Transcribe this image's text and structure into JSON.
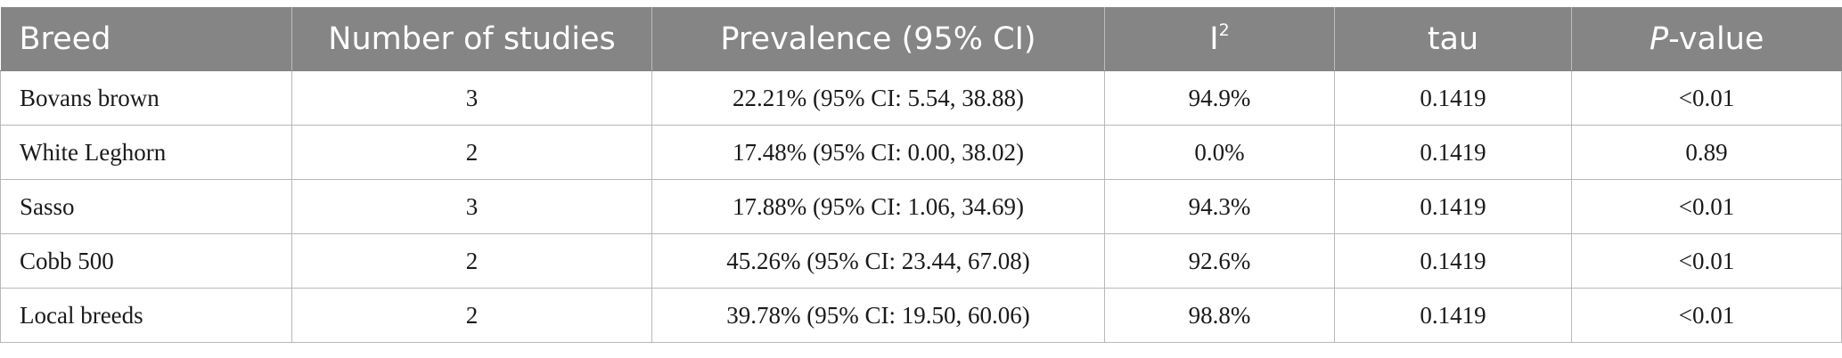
{
  "table": {
    "headers": {
      "breed": "Breed",
      "studies": "Number of studies",
      "prevalence": "Prevalence (95% CI)",
      "i2_base": "I",
      "i2_sup": "2",
      "tau": "tau",
      "p_italic": "P",
      "p_rest": "-value"
    },
    "rows": [
      {
        "breed": "Bovans brown",
        "studies": "3",
        "prevalence": "22.21% (95% CI: 5.54, 38.88)",
        "i2": "94.9%",
        "tau": "0.1419",
        "p": "<0.01"
      },
      {
        "breed": "White Leghorn",
        "studies": "2",
        "prevalence": "17.48% (95% CI: 0.00, 38.02)",
        "i2": "0.0%",
        "tau": "0.1419",
        "p": "0.89"
      },
      {
        "breed": "Sasso",
        "studies": "3",
        "prevalence": "17.88% (95% CI: 1.06, 34.69)",
        "i2": "94.3%",
        "tau": "0.1419",
        "p": "<0.01"
      },
      {
        "breed": "Cobb 500",
        "studies": "2",
        "prevalence": "45.26% (95% CI: 23.44, 67.08)",
        "i2": "92.6%",
        "tau": "0.1419",
        "p": "<0.01"
      },
      {
        "breed": "Local breeds",
        "studies": "2",
        "prevalence": "39.78% (95% CI: 19.50, 60.06)",
        "i2": "98.8%",
        "tau": "0.1419",
        "p": "<0.01"
      }
    ]
  },
  "colors": {
    "header_bg": "#858585",
    "header_text": "#ffffff",
    "grid_line": "#b8b8b8",
    "body_text": "#1a1a1a"
  }
}
